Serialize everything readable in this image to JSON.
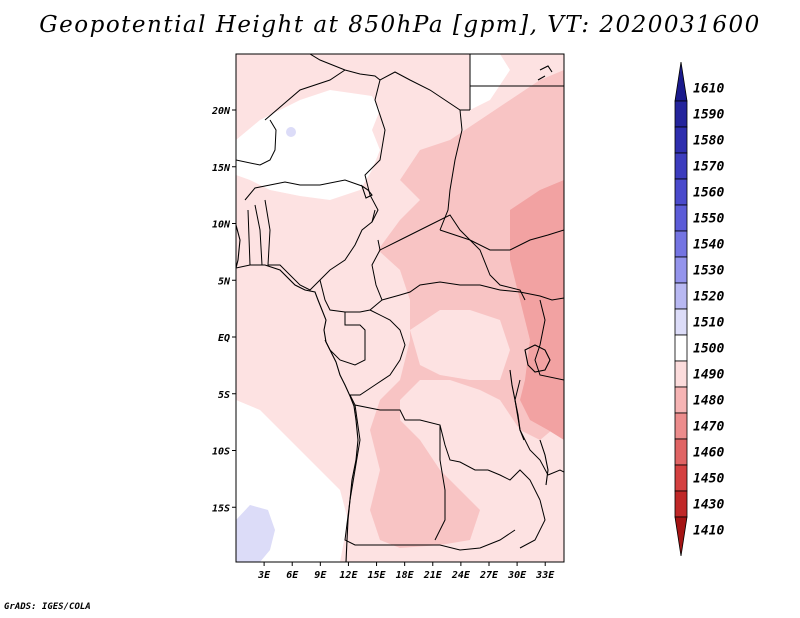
{
  "title": "Geopotential Height at 850hPa [gpm], VT: 2020031600",
  "credit": "GrADS: IGES/COLA",
  "map": {
    "variable": "Geopotential Height",
    "level": "850hPa",
    "units": "gpm",
    "valid_time": "2020031600",
    "lat_labels": [
      "20N",
      "15N",
      "10N",
      "5N",
      "EQ",
      "5S",
      "10S",
      "15S"
    ],
    "lon_labels": [
      "3E",
      "6E",
      "9E",
      "12E",
      "15E",
      "18E",
      "21E",
      "24E",
      "27E",
      "30E",
      "33E"
    ]
  },
  "colorbar": {
    "levels": [
      "1610",
      "1590",
      "1580",
      "1570",
      "1560",
      "1550",
      "1540",
      "1530",
      "1520",
      "1510",
      "1500",
      "1490",
      "1480",
      "1470",
      "1460",
      "1450",
      "1430",
      "1410"
    ],
    "colors": [
      "#1a1a8c",
      "#24249c",
      "#2e2eae",
      "#3c3cbe",
      "#4a4acc",
      "#5c5cd8",
      "#7474e2",
      "#9494ec",
      "#b8b8f2",
      "#dcdcf8",
      "#ffffff",
      "#fcdcdc",
      "#f6b4b4",
      "#ec8c8c",
      "#e06464",
      "#d44040",
      "#c02828",
      "#a41414"
    ],
    "fill_colors": {
      "c1500": "#fde2e2",
      "c1490": "#f8c4c4",
      "c1480": "#f2a2a2",
      "c1520": "#dcdcf8",
      "c1510": "#ffffff"
    }
  },
  "chart_data": {
    "type": "heatmap",
    "title": "Geopotential Height at 850hPa [gpm], VT: 2020031600",
    "units": "gpm",
    "x_range": [
      0,
      35
    ],
    "y_range": [
      -20,
      24
    ],
    "xticks": [
      "3E",
      "6E",
      "9E",
      "12E",
      "15E",
      "18E",
      "21E",
      "24E",
      "27E",
      "30E",
      "33E"
    ],
    "yticks": [
      "20N",
      "15N",
      "10N",
      "5N",
      "EQ",
      "5S",
      "10S",
      "15S"
    ],
    "contour_levels": [
      1410,
      1430,
      1450,
      1460,
      1470,
      1480,
      1490,
      1500,
      1510,
      1520,
      1530,
      1540,
      1550,
      1560,
      1570,
      1580,
      1590,
      1610
    ]
  }
}
